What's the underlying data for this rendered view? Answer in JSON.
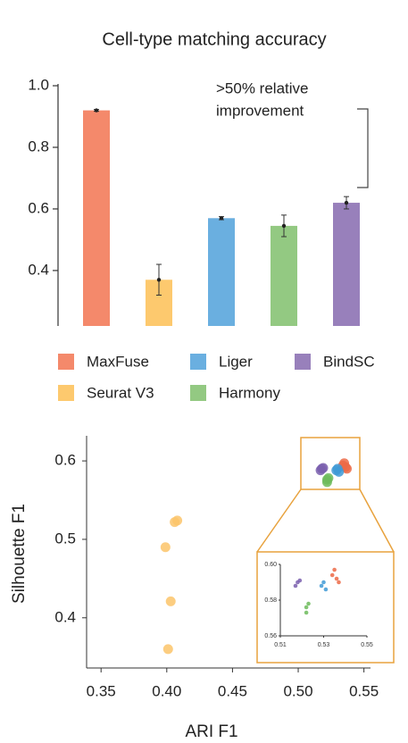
{
  "chart_data": [
    {
      "type": "bar",
      "title": "Cell-type matching accuracy",
      "annotation": [
        ">50% relative",
        "improvement"
      ],
      "categories": [
        "MaxFuse",
        "Seurat V3",
        "Liger",
        "Harmony",
        "BindSC"
      ],
      "values": [
        0.92,
        0.37,
        0.57,
        0.545,
        0.62
      ],
      "errors": [
        0.003,
        0.05,
        0.005,
        0.035,
        0.02
      ],
      "colors": [
        "#f4896b",
        "#fdc96e",
        "#6aafe0",
        "#93c982",
        "#9880bb"
      ],
      "ylim": [
        0.22,
        1.0
      ],
      "yticks": [
        0.4,
        0.6,
        0.8,
        {
          "value": 1.0,
          "label": "1.0"
        }
      ]
    },
    {
      "type": "scatter",
      "xlabel": "ARI F1",
      "ylabel": "Silhouette F1",
      "xlim": [
        0.339,
        0.555
      ],
      "ylim": [
        0.336,
        0.632
      ],
      "xticks": [
        0.35,
        {
          "value": 0.4,
          "label": "0.40"
        },
        0.45,
        {
          "value": 0.5,
          "label": "0.50"
        },
        0.55
      ],
      "yticks": [
        0.4,
        0.5,
        0.6
      ],
      "series": [
        {
          "color": "#ec6a47",
          "x": [
            0.535,
            0.536,
            0.534,
            0.537
          ],
          "y": [
            0.597,
            0.592,
            0.594,
            0.59
          ]
        },
        {
          "color": "#fcc46a",
          "x": [
            0.408,
            0.406,
            0.399,
            0.403,
            0.401
          ],
          "y": [
            0.524,
            0.522,
            0.49,
            0.421,
            0.36
          ]
        },
        {
          "color": "#3f9ad6",
          "x": [
            0.529,
            0.531,
            0.53
          ],
          "y": [
            0.588,
            0.586,
            0.59
          ]
        },
        {
          "color": "#6dbb5c",
          "x": [
            0.522,
            0.522,
            0.523
          ],
          "y": [
            0.576,
            0.573,
            0.578
          ]
        },
        {
          "color": "#7a5fae",
          "x": [
            0.518,
            0.519,
            0.517
          ],
          "y": [
            0.59,
            0.591,
            0.588
          ]
        }
      ],
      "inset": {
        "xlim": [
          0.51,
          0.55
        ],
        "ylim": [
          0.56,
          0.6
        ],
        "xticks": [
          0.51,
          0.53,
          0.55
        ],
        "yticks": [
          0.56,
          0.58,
          {
            "value": 0.6,
            "label": "0.60"
          }
        ]
      }
    }
  ]
}
